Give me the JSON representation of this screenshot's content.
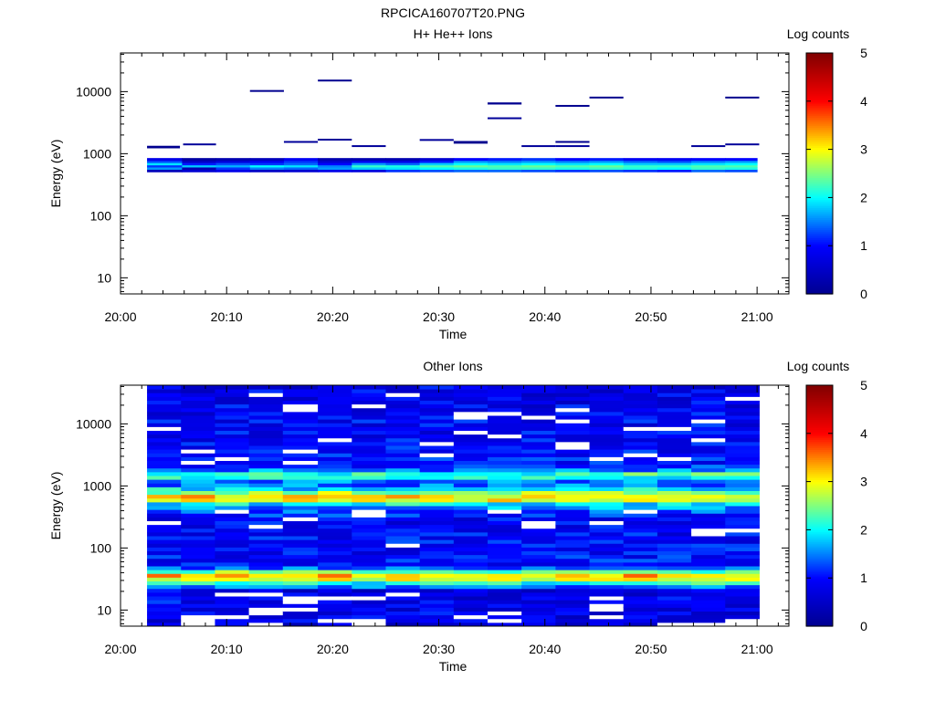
{
  "figure": {
    "filename": "RPCICA160707T20.PNG"
  },
  "colors": {
    "cmap": [
      "#00008f",
      "#0000ff",
      "#00ffff",
      "#ffff00",
      "#ff0000",
      "#800000"
    ],
    "missing": "#ffffff"
  },
  "chart_data": [
    {
      "type": "heatmap",
      "title": "H+ He++ Ions",
      "xlabel": "Time",
      "ylabel": "Energy (eV)",
      "colorbar_label": "Log counts",
      "y_scale": "log",
      "xlim": [
        "20:00",
        "21:03"
      ],
      "ylim": [
        5.5,
        42000
      ],
      "x_ticks": [
        "20:00",
        "20:10",
        "20:20",
        "20:30",
        "20:40",
        "20:50",
        "21:00"
      ],
      "y_ticks": [
        "10",
        "100",
        "1000",
        "10000"
      ],
      "colorbar_ticks": [
        "0",
        "1",
        "2",
        "3",
        "4",
        "5"
      ],
      "clim": [
        0,
        5
      ],
      "time_bins": [
        "20:02.5",
        "20:05.8",
        "20:09.0",
        "20:12.2",
        "20:15.4",
        "20:18.6",
        "20:21.8",
        "20:25.0",
        "20:28.2",
        "20:31.4",
        "20:34.6",
        "20:37.8",
        "20:41.0",
        "20:44.2",
        "20:47.4",
        "20:50.6",
        "20:53.8",
        "20:57.0",
        "21:00.0"
      ],
      "cells": [
        {
          "t0": 2.5,
          "t1": 5.6,
          "e0": 1220,
          "e1": 1340,
          "v": 0.0
        },
        {
          "t0": 5.9,
          "t1": 9.0,
          "e0": 1380,
          "e1": 1460,
          "v": 0.1
        },
        {
          "t0": 12.2,
          "t1": 15.4,
          "e0": 10000,
          "e1": 10600,
          "v": 0.0
        },
        {
          "t0": 15.4,
          "t1": 18.6,
          "e0": 1520,
          "e1": 1600,
          "v": 0.1
        },
        {
          "t0": 18.6,
          "t1": 21.8,
          "e0": 15000,
          "e1": 15600,
          "v": 0.0
        },
        {
          "t0": 18.6,
          "t1": 21.8,
          "e0": 1660,
          "e1": 1740,
          "v": 0.1
        },
        {
          "t0": 21.8,
          "t1": 25.0,
          "e0": 1300,
          "e1": 1370,
          "v": 0.1
        },
        {
          "t0": 28.2,
          "t1": 31.4,
          "e0": 1640,
          "e1": 1720,
          "v": 0.1
        },
        {
          "t0": 31.4,
          "t1": 34.6,
          "e0": 1450,
          "e1": 1600,
          "v": 0.0
        },
        {
          "t0": 34.6,
          "t1": 37.8,
          "e0": 6200,
          "e1": 6700,
          "v": 0.0
        },
        {
          "t0": 34.6,
          "t1": 37.8,
          "e0": 3600,
          "e1": 3850,
          "v": 0.1
        },
        {
          "t0": 37.8,
          "t1": 41.0,
          "e0": 1300,
          "e1": 1370,
          "v": 0.1
        },
        {
          "t0": 41.0,
          "t1": 44.2,
          "e0": 5700,
          "e1": 6100,
          "v": 0.0
        },
        {
          "t0": 41.0,
          "t1": 44.2,
          "e0": 1500,
          "e1": 1600,
          "v": 0.0
        },
        {
          "t0": 41.0,
          "t1": 44.2,
          "e0": 1300,
          "e1": 1370,
          "v": 0.1
        },
        {
          "t0": 44.2,
          "t1": 47.4,
          "e0": 7800,
          "e1": 8300,
          "v": 0.0
        },
        {
          "t0": 53.8,
          "t1": 57.0,
          "e0": 1300,
          "e1": 1370,
          "v": 0.1
        },
        {
          "t0": 57.0,
          "t1": 60.2,
          "e0": 7800,
          "e1": 8300,
          "v": 0.0
        },
        {
          "t0": 57.0,
          "t1": 60.2,
          "e0": 1380,
          "e1": 1460,
          "v": 0.1
        }
      ],
      "main_band": {
        "e_edges": [
          510,
          560,
          610,
          660,
          720,
          780,
          850
        ],
        "values_by_time": [
          [
            0.4,
            1.6,
            1.2,
            1.9,
            1.3,
            0.8
          ],
          [
            0.6,
            0.3,
            1.8,
            1.1,
            0.5,
            0.2
          ],
          [
            0.8,
            1.2,
            1.7,
            1.3,
            0.7,
            0.3
          ],
          [
            0.5,
            1.5,
            2.0,
            1.2,
            0.9,
            0.4
          ],
          [
            0.6,
            1.4,
            1.9,
            1.4,
            1.2,
            0.9
          ],
          [
            0.8,
            1.6,
            1.5,
            1.0,
            0.6,
            0.3
          ],
          [
            0.7,
            1.8,
            2.2,
            1.6,
            0.9,
            0.3
          ],
          [
            1.2,
            1.9,
            2.1,
            1.4,
            0.8,
            0.3
          ],
          [
            1.3,
            2.0,
            2.3,
            1.8,
            1.1,
            0.6
          ],
          [
            1.4,
            2.1,
            2.4,
            2.0,
            1.6,
            1.0
          ],
          [
            1.4,
            2.2,
            2.3,
            1.9,
            1.5,
            1.1
          ],
          [
            1.3,
            2.2,
            2.4,
            2.0,
            1.6,
            1.2
          ],
          [
            1.2,
            2.1,
            2.3,
            1.9,
            1.5,
            1.0
          ],
          [
            1.3,
            2.2,
            2.4,
            2.0,
            1.6,
            1.1
          ],
          [
            1.2,
            2.1,
            2.2,
            1.8,
            1.4,
            0.9
          ],
          [
            1.1,
            2.0,
            2.2,
            1.8,
            1.3,
            0.9
          ],
          [
            1.4,
            2.2,
            2.3,
            1.9,
            1.5,
            1.0
          ],
          [
            1.3,
            2.1,
            2.3,
            2.0,
            1.6,
            1.0
          ]
        ]
      }
    },
    {
      "type": "heatmap",
      "title": "Other Ions",
      "xlabel": "Time",
      "ylabel": "Energy (eV)",
      "colorbar_label": "Log counts",
      "y_scale": "log",
      "xlim": [
        "20:00",
        "21:03"
      ],
      "ylim": [
        5.5,
        42000
      ],
      "x_ticks": [
        "20:00",
        "20:10",
        "20:20",
        "20:30",
        "20:40",
        "20:50",
        "21:00"
      ],
      "y_ticks": [
        "10",
        "100",
        "1000",
        "10000"
      ],
      "colorbar_ticks": [
        "0",
        "1",
        "2",
        "3",
        "4",
        "5"
      ],
      "clim": [
        0,
        5
      ],
      "t_edges_min": [
        2.5,
        5.7,
        8.9,
        12.1,
        15.3,
        18.6,
        21.8,
        25.0,
        28.2,
        31.4,
        34.6,
        37.8,
        41.0,
        44.2,
        47.4,
        50.6,
        53.8,
        57.0,
        60.2
      ],
      "profile": [
        {
          "e": 6.0,
          "v": 0.7
        },
        {
          "e": 14.0,
          "v": 0.9
        },
        {
          "e": 20.0,
          "v": 0.6
        },
        {
          "e": 26.0,
          "v": 1.8
        },
        {
          "e": 31.0,
          "v": 2.9
        },
        {
          "e": 37.0,
          "v": 3.3
        },
        {
          "e": 44.0,
          "v": 2.1
        },
        {
          "e": 50.0,
          "v": 1.0
        },
        {
          "e": 300.0,
          "v": 0.9
        },
        {
          "e": 420.0,
          "v": 1.4
        },
        {
          "e": 520.0,
          "v": 2.0
        },
        {
          "e": 620.0,
          "v": 3.3
        },
        {
          "e": 720.0,
          "v": 3.0
        },
        {
          "e": 820.0,
          "v": 2.4
        },
        {
          "e": 950.0,
          "v": 1.6
        },
        {
          "e": 1150.0,
          "v": 1.3
        },
        {
          "e": 1350.0,
          "v": 2.0
        },
        {
          "e": 1550.0,
          "v": 2.3
        },
        {
          "e": 1800.0,
          "v": 1.5
        },
        {
          "e": 2300.0,
          "v": 1.0
        },
        {
          "e": 42000.0,
          "v": 0.8
        }
      ]
    }
  ]
}
